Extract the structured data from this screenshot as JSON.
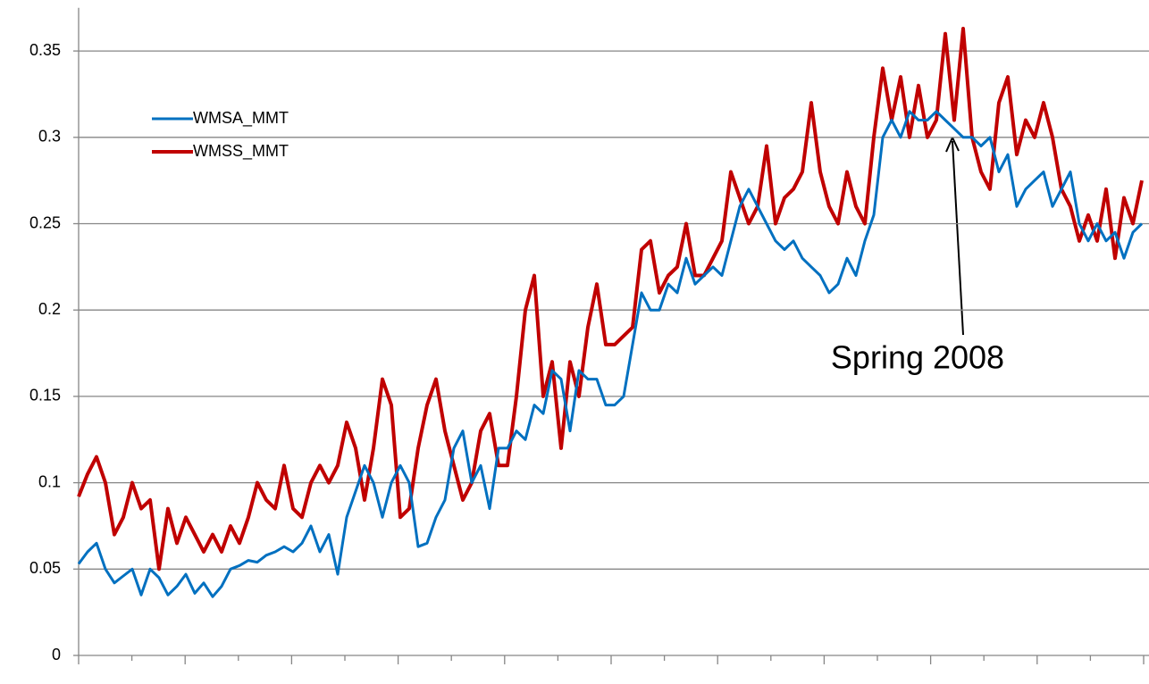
{
  "chart_data": {
    "type": "line",
    "ylim": [
      0,
      0.375
    ],
    "yticks": [
      0,
      0.05,
      0.1,
      0.15,
      0.2,
      0.25,
      0.3,
      0.35
    ],
    "grid": true,
    "legend": "upper left",
    "annotation": "Spring 2008",
    "series": [
      {
        "name": "WMSA_MMT",
        "color": "#0070c0",
        "values": [
          0.053,
          0.06,
          0.065,
          0.05,
          0.042,
          0.046,
          0.05,
          0.035,
          0.05,
          0.045,
          0.035,
          0.04,
          0.047,
          0.036,
          0.042,
          0.034,
          0.04,
          0.05,
          0.052,
          0.055,
          0.054,
          0.058,
          0.06,
          0.063,
          0.06,
          0.065,
          0.075,
          0.06,
          0.07,
          0.047,
          0.08,
          0.095,
          0.11,
          0.1,
          0.08,
          0.1,
          0.11,
          0.1,
          0.063,
          0.065,
          0.08,
          0.09,
          0.12,
          0.13,
          0.1,
          0.11,
          0.085,
          0.12,
          0.12,
          0.13,
          0.125,
          0.145,
          0.14,
          0.165,
          0.16,
          0.13,
          0.165,
          0.16,
          0.16,
          0.145,
          0.145,
          0.15,
          0.18,
          0.21,
          0.2,
          0.2,
          0.215,
          0.21,
          0.23,
          0.215,
          0.22,
          0.225,
          0.22,
          0.24,
          0.26,
          0.27,
          0.26,
          0.25,
          0.24,
          0.235,
          0.24,
          0.23,
          0.225,
          0.22,
          0.21,
          0.215,
          0.23,
          0.22,
          0.24,
          0.255,
          0.3,
          0.31,
          0.3,
          0.315,
          0.31,
          0.31,
          0.315,
          0.31,
          0.305,
          0.3,
          0.3,
          0.295,
          0.3,
          0.28,
          0.29,
          0.26,
          0.27,
          0.275,
          0.28,
          0.26,
          0.27,
          0.28,
          0.25,
          0.24,
          0.25,
          0.24,
          0.245,
          0.23,
          0.245,
          0.25
        ]
      },
      {
        "name": "WMSS_MMT",
        "color": "#c00000",
        "values": [
          0.092,
          0.105,
          0.115,
          0.1,
          0.07,
          0.08,
          0.1,
          0.085,
          0.09,
          0.05,
          0.085,
          0.065,
          0.08,
          0.07,
          0.06,
          0.07,
          0.06,
          0.075,
          0.065,
          0.08,
          0.1,
          0.09,
          0.085,
          0.11,
          0.085,
          0.08,
          0.1,
          0.11,
          0.1,
          0.11,
          0.135,
          0.12,
          0.09,
          0.12,
          0.16,
          0.145,
          0.08,
          0.085,
          0.12,
          0.145,
          0.16,
          0.13,
          0.11,
          0.09,
          0.1,
          0.13,
          0.14,
          0.11,
          0.11,
          0.15,
          0.2,
          0.22,
          0.15,
          0.17,
          0.12,
          0.17,
          0.15,
          0.19,
          0.215,
          0.18,
          0.18,
          0.185,
          0.19,
          0.235,
          0.24,
          0.21,
          0.22,
          0.225,
          0.25,
          0.22,
          0.22,
          0.23,
          0.24,
          0.28,
          0.265,
          0.25,
          0.26,
          0.295,
          0.25,
          0.265,
          0.27,
          0.28,
          0.32,
          0.28,
          0.26,
          0.25,
          0.28,
          0.26,
          0.25,
          0.3,
          0.34,
          0.31,
          0.335,
          0.3,
          0.33,
          0.3,
          0.31,
          0.36,
          0.31,
          0.363,
          0.3,
          0.28,
          0.27,
          0.32,
          0.335,
          0.29,
          0.31,
          0.3,
          0.32,
          0.3,
          0.27,
          0.26,
          0.24,
          0.255,
          0.24,
          0.27,
          0.23,
          0.265,
          0.25,
          0.275
        ]
      }
    ]
  }
}
